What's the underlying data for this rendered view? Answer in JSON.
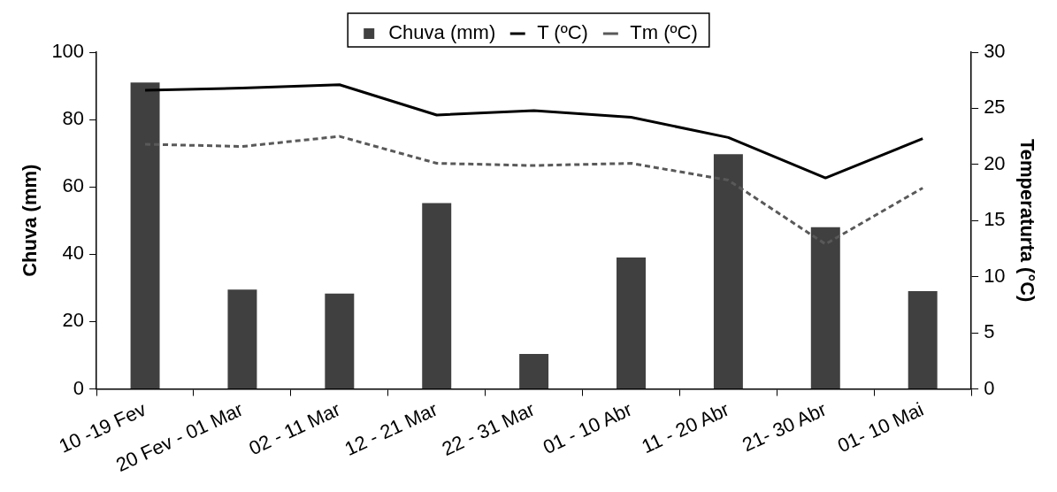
{
  "chart_data": {
    "type": "bar",
    "categories": [
      "10 -19 Fev",
      "20 Fev - 01 Mar",
      "02 - 11 Mar",
      "12 - 21 Mar",
      "22 - 31 Mar",
      "01 - 10 Abr",
      "11 - 20 Abr",
      "21- 30 Abr",
      "01- 10 Mai"
    ],
    "ylabel": "Chuva (mm)",
    "y2label": "Temperaturta (°C)",
    "ylim": [
      0,
      100
    ],
    "yticks": [
      0,
      20,
      40,
      60,
      80,
      100
    ],
    "y2lim": [
      0,
      30
    ],
    "y2ticks": [
      0,
      5,
      10,
      15,
      20,
      25,
      30
    ],
    "series": [
      {
        "name": "Chuva (mm)",
        "color": "#404040",
        "values": [
          91,
          29.5,
          28.3,
          55.2,
          10.4,
          39,
          69.7,
          48,
          29
        ]
      },
      {
        "name": "T (ºC)",
        "type": "line",
        "axis": "y2",
        "color": "#000000",
        "line_style": "solid",
        "values": [
          26.6,
          26.8,
          27.1,
          24.4,
          24.8,
          24.2,
          22.4,
          18.8,
          22.3
        ]
      },
      {
        "name": "Tm (ºC)",
        "type": "line",
        "axis": "y2",
        "color": "#595959",
        "line_style": "dashed",
        "values": [
          21.8,
          21.6,
          22.5,
          20.1,
          19.9,
          20.1,
          18.6,
          12.9,
          17.9
        ]
      }
    ],
    "legend": "top",
    "grid": false,
    "marker": "none"
  }
}
